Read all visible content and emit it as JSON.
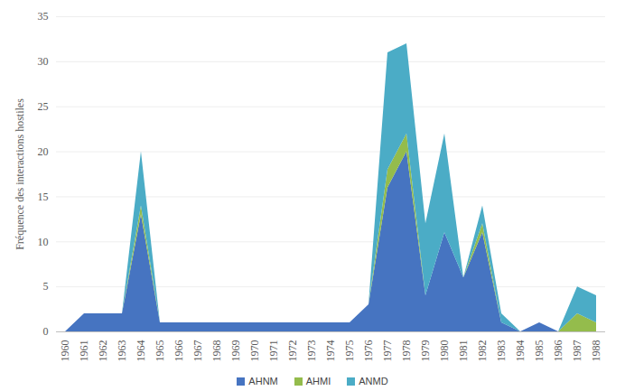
{
  "chart_data": {
    "type": "area",
    "stacked": true,
    "y_label": "Fréquence des interactions hostiles",
    "categories": [
      "1960",
      "1961",
      "1962",
      "1963",
      "1964",
      "1965",
      "1966",
      "1967",
      "1968",
      "1969",
      "1970",
      "1971",
      "1972",
      "1973",
      "1974",
      "1975",
      "1976",
      "1977",
      "1978",
      "1979",
      "1980",
      "1981",
      "1982",
      "1983",
      "1984",
      "1985",
      "1986",
      "1987",
      "1988"
    ],
    "series": [
      {
        "name": "AHNM",
        "color": "#4674c1",
        "values": [
          0,
          2,
          2,
          2,
          13,
          1,
          1,
          1,
          1,
          1,
          1,
          1,
          1,
          1,
          1,
          1,
          3,
          16,
          20,
          4,
          11,
          6,
          11,
          1,
          0,
          1,
          0,
          0,
          0
        ]
      },
      {
        "name": "AHMI",
        "color": "#94bc4c",
        "values": [
          0,
          0,
          0,
          0,
          1,
          0,
          0,
          0,
          0,
          0,
          0,
          0,
          0,
          0,
          0,
          0,
          0,
          2,
          2,
          0,
          0,
          0,
          1,
          0,
          0,
          0,
          0,
          2,
          1
        ]
      },
      {
        "name": "ANMD",
        "color": "#4bacc6",
        "values": [
          0,
          0,
          0,
          0,
          6,
          0,
          0,
          0,
          0,
          0,
          0,
          0,
          0,
          0,
          0,
          0,
          0,
          13,
          10,
          8,
          11,
          0,
          2,
          1,
          0,
          0,
          0,
          3,
          3
        ]
      }
    ],
    "ylim": [
      0,
      35
    ],
    "yticks": [
      0,
      5,
      10,
      15,
      20,
      25,
      30,
      35
    ],
    "grid": true,
    "legend": "bottom"
  }
}
